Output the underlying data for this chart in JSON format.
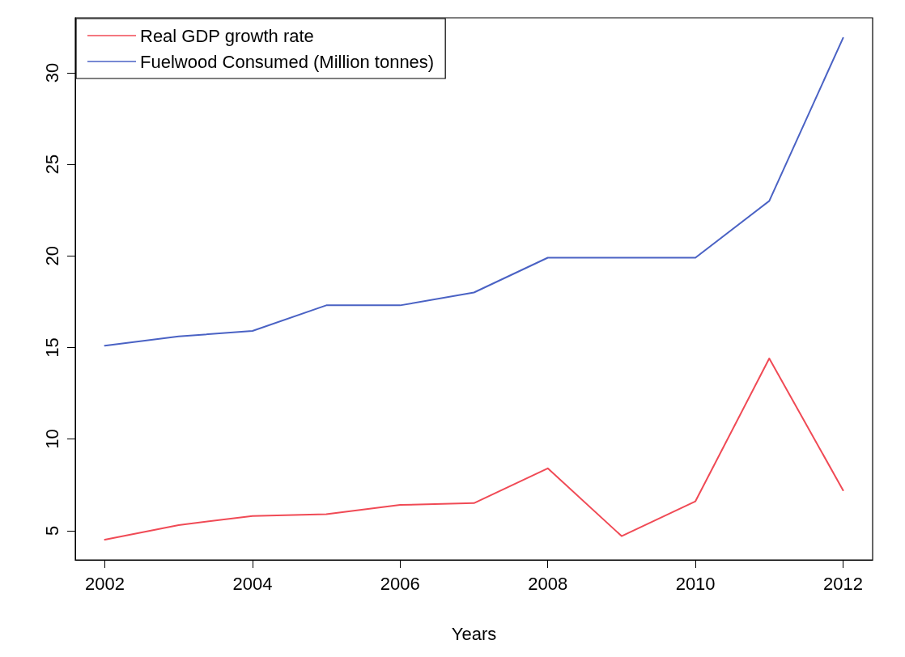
{
  "chart_data": {
    "type": "line",
    "xlabel": "Years",
    "x": [
      2002,
      2003,
      2004,
      2005,
      2006,
      2007,
      2008,
      2009,
      2010,
      2011,
      2012
    ],
    "series": [
      {
        "name": "Real GDP growth rate",
        "color": "#f04a55",
        "values": [
          4.5,
          5.3,
          5.8,
          5.9,
          6.4,
          6.5,
          8.4,
          4.7,
          6.6,
          14.4,
          7.2
        ]
      },
      {
        "name": "Fuelwood Consumed (Million tonnes)",
        "color": "#4a62c4",
        "values": [
          15.1,
          15.6,
          15.9,
          17.3,
          17.3,
          18.0,
          19.9,
          19.9,
          19.9,
          23.0,
          31.9
        ]
      }
    ],
    "xlim": [
      2001.6,
      2012.4
    ],
    "xticks": [
      2002,
      2004,
      2006,
      2008,
      2010,
      2012
    ],
    "ylim": [
      3.4,
      33.0
    ],
    "yticks": [
      5,
      10,
      15,
      20,
      25,
      30
    ],
    "legend": "top left",
    "grid": false,
    "marker": "none",
    "line_style": "solid"
  }
}
